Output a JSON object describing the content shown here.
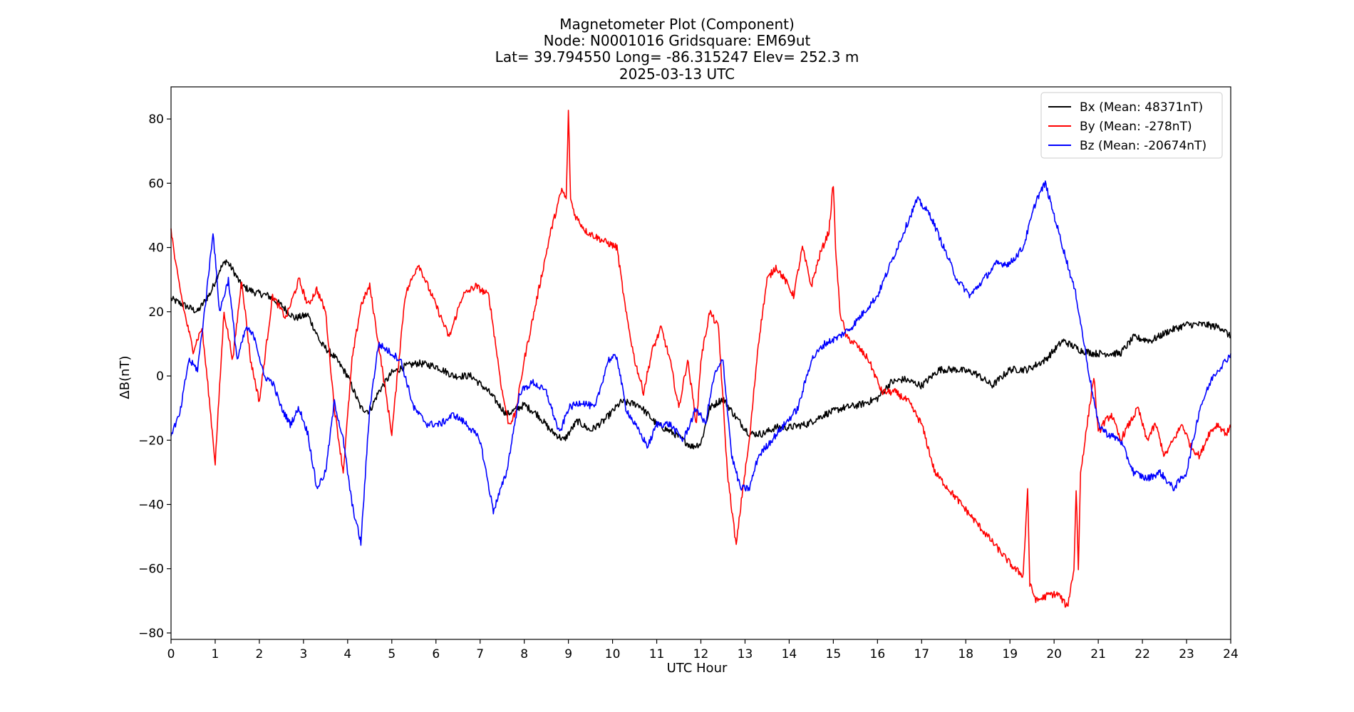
{
  "chart_data": {
    "type": "line",
    "title_lines": [
      "Magnetometer Plot (Component)",
      "Node:  N0001016     Gridsquare:  EM69ut",
      "Lat= 39.794550    Long= -86.315247    Elev= 252.3 m",
      "2025-03-13  UTC"
    ],
    "xlabel": "UTC Hour",
    "ylabel": "ΔB(nT)",
    "xlim": [
      0,
      24
    ],
    "ylim": [
      -82,
      90
    ],
    "x_ticks": [
      0,
      1,
      2,
      3,
      4,
      5,
      6,
      7,
      8,
      9,
      10,
      11,
      12,
      13,
      14,
      15,
      16,
      17,
      18,
      19,
      20,
      21,
      22,
      23,
      24
    ],
    "y_ticks": [
      -80,
      -60,
      -40,
      -20,
      0,
      20,
      40,
      60,
      80
    ],
    "y_tick_labels": [
      "−80",
      "−60",
      "−40",
      "−20",
      "0",
      "20",
      "40",
      "60",
      "80"
    ],
    "grid": false,
    "legend_position": "top-right",
    "series": [
      {
        "name": "Bx",
        "legend_label": "Bx (Mean: 48371nT)",
        "color": "#000000",
        "x": [
          0,
          0.3,
          0.6,
          0.9,
          1.1,
          1.25,
          1.4,
          1.6,
          1.9,
          2.2,
          2.5,
          2.8,
          3.1,
          3.4,
          3.7,
          4.0,
          4.3,
          4.5,
          4.7,
          5.0,
          5.3,
          5.6,
          6.0,
          6.4,
          6.8,
          7.2,
          7.6,
          8.0,
          8.3,
          8.6,
          8.9,
          9.2,
          9.5,
          9.8,
          10.2,
          10.6,
          11.0,
          11.4,
          11.8,
          12.0,
          12.2,
          12.5,
          12.8,
          13.1,
          13.4,
          13.7,
          14.0,
          14.4,
          14.8,
          15.2,
          15.6,
          16.0,
          16.3,
          16.6,
          17.0,
          17.4,
          17.8,
          18.2,
          18.6,
          19.0,
          19.4,
          19.8,
          20.2,
          20.6,
          20.9,
          21.2,
          21.5,
          21.8,
          22.2,
          22.6,
          23.0,
          23.4,
          23.8,
          24.0
        ],
        "y": [
          24,
          22,
          20,
          26,
          33,
          36,
          33,
          28,
          26,
          25,
          22,
          18,
          19,
          10,
          6,
          0,
          -10,
          -11,
          -5,
          1,
          3,
          4,
          3,
          0,
          0,
          -5,
          -12,
          -9,
          -12,
          -17,
          -20,
          -14,
          -17,
          -14,
          -8,
          -9,
          -15,
          -18,
          -22,
          -21,
          -10,
          -7,
          -13,
          -18,
          -18,
          -16,
          -16,
          -15,
          -12,
          -10,
          -9,
          -7,
          -2,
          -1,
          -3,
          2,
          2,
          1,
          -3,
          2,
          2,
          5,
          11,
          8,
          7,
          7,
          7,
          12,
          11,
          14,
          16,
          16,
          15,
          12
        ]
      },
      {
        "name": "By",
        "legend_label": "By (Mean: -278nT)",
        "color": "#ff0000",
        "x": [
          0,
          0.1,
          0.3,
          0.5,
          0.7,
          0.85,
          1.0,
          1.2,
          1.4,
          1.6,
          1.8,
          2.0,
          2.3,
          2.6,
          2.9,
          3.1,
          3.3,
          3.5,
          3.7,
          3.9,
          4.1,
          4.3,
          4.5,
          4.7,
          5.0,
          5.3,
          5.6,
          6.0,
          6.3,
          6.6,
          6.9,
          7.2,
          7.5,
          7.65,
          7.8,
          8.0,
          8.3,
          8.6,
          8.85,
          8.95,
          9.0,
          9.05,
          9.15,
          9.4,
          9.8,
          10.1,
          10.3,
          10.5,
          10.7,
          10.9,
          11.1,
          11.3,
          11.5,
          11.7,
          11.9,
          12.0,
          12.2,
          12.4,
          12.6,
          12.8,
          12.95,
          13.1,
          13.3,
          13.5,
          13.7,
          13.9,
          14.1,
          14.3,
          14.5,
          14.7,
          14.9,
          15.0,
          15.05,
          15.15,
          15.3,
          15.5,
          15.8,
          16.1,
          16.4,
          16.7,
          17.0,
          17.3,
          17.6,
          17.9,
          18.2,
          18.5,
          18.8,
          19.1,
          19.3,
          19.4,
          19.45,
          19.6,
          19.9,
          20.1,
          20.3,
          20.45,
          20.5,
          20.55,
          20.6,
          20.75,
          20.9,
          21.0,
          21.1,
          21.3,
          21.5,
          21.7,
          21.9,
          22.1,
          22.3,
          22.5,
          22.7,
          22.9,
          23.1,
          23.3,
          23.5,
          23.7,
          23.9,
          24.0
        ],
        "y": [
          46,
          35,
          20,
          8,
          15,
          -5,
          -27,
          20,
          5,
          30,
          5,
          -8,
          25,
          18,
          30,
          22,
          27,
          20,
          -10,
          -30,
          5,
          22,
          28,
          10,
          -18,
          25,
          35,
          22,
          12,
          25,
          28,
          25,
          -5,
          -15,
          -12,
          5,
          25,
          45,
          58,
          55,
          82,
          55,
          50,
          45,
          42,
          40,
          20,
          5,
          -5,
          8,
          15,
          5,
          -10,
          5,
          -15,
          5,
          20,
          15,
          -30,
          -53,
          -35,
          -20,
          10,
          30,
          34,
          30,
          25,
          40,
          28,
          38,
          45,
          60,
          40,
          20,
          12,
          10,
          5,
          -5,
          -5,
          -8,
          -15,
          -30,
          -35,
          -40,
          -45,
          -50,
          -55,
          -60,
          -62,
          -35,
          -65,
          -70,
          -68,
          -68,
          -72,
          -60,
          -35,
          -60,
          -30,
          -15,
          0,
          -18,
          -15,
          -12,
          -20,
          -15,
          -10,
          -20,
          -15,
          -25,
          -20,
          -15,
          -22,
          -25,
          -18,
          -15,
          -18,
          -16
        ]
      },
      {
        "name": "Bz",
        "legend_label": "Bz (Mean: -20674nT)",
        "color": "#0000ff",
        "x": [
          0,
          0.2,
          0.4,
          0.6,
          0.8,
          0.95,
          1.1,
          1.3,
          1.5,
          1.7,
          1.9,
          2.1,
          2.3,
          2.5,
          2.7,
          2.9,
          3.1,
          3.3,
          3.5,
          3.7,
          3.9,
          4.1,
          4.3,
          4.5,
          4.7,
          4.9,
          5.2,
          5.5,
          5.8,
          6.1,
          6.4,
          6.7,
          7.0,
          7.3,
          7.6,
          7.9,
          8.2,
          8.5,
          8.8,
          9.0,
          9.3,
          9.6,
          9.9,
          10.1,
          10.3,
          10.5,
          10.8,
          11.0,
          11.3,
          11.6,
          11.9,
          12.1,
          12.3,
          12.5,
          12.7,
          12.9,
          13.1,
          13.3,
          13.6,
          13.9,
          14.2,
          14.5,
          14.8,
          15.1,
          15.4,
          15.7,
          16.0,
          16.3,
          16.6,
          16.9,
          17.2,
          17.5,
          17.8,
          18.1,
          18.4,
          18.7,
          19.0,
          19.3,
          19.6,
          19.8,
          20.0,
          20.2,
          20.5,
          20.8,
          21.0,
          21.2,
          21.5,
          21.8,
          22.1,
          22.4,
          22.7,
          23.0,
          23.3,
          23.6,
          23.9,
          24.0
        ],
        "y": [
          -18,
          -12,
          5,
          2,
          25,
          45,
          20,
          30,
          5,
          15,
          12,
          0,
          -2,
          -10,
          -15,
          -10,
          -18,
          -35,
          -30,
          -8,
          -20,
          -40,
          -52,
          -10,
          10,
          8,
          5,
          -10,
          -15,
          -15,
          -12,
          -15,
          -20,
          -42,
          -30,
          -5,
          -2,
          -5,
          -18,
          -10,
          -8,
          -10,
          5,
          6,
          -10,
          -15,
          -22,
          -15,
          -15,
          -20,
          -10,
          -15,
          0,
          5,
          -25,
          -35,
          -35,
          -25,
          -20,
          -15,
          -10,
          5,
          10,
          12,
          15,
          20,
          25,
          35,
          45,
          55,
          50,
          40,
          30,
          25,
          30,
          35,
          35,
          40,
          55,
          60,
          50,
          40,
          25,
          0,
          -15,
          -18,
          -20,
          -30,
          -32,
          -30,
          -35,
          -30,
          -10,
          0,
          5,
          7
        ]
      }
    ]
  }
}
